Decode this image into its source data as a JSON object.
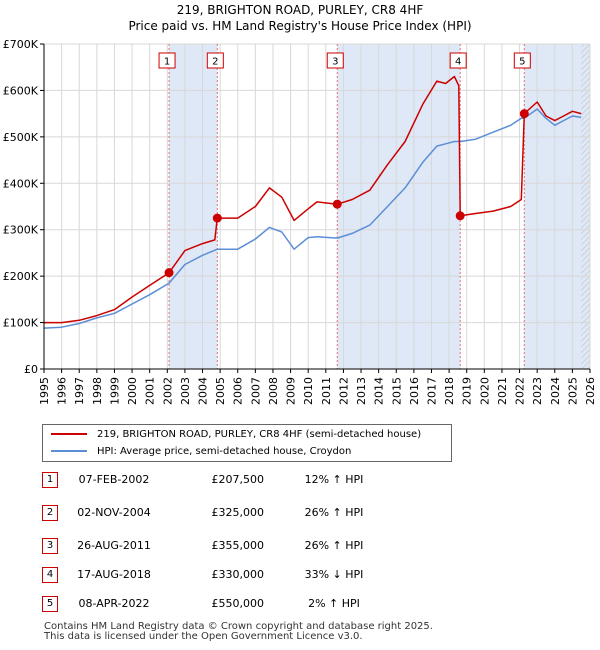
{
  "chart_data": {
    "type": "line",
    "title": "219, BRIGHTON ROAD, PURLEY, CR8 4HF",
    "subtitle": "Price paid vs. HM Land Registry's House Price Index (HPI)",
    "x_range": [
      1995,
      2026
    ],
    "ylim": [
      0,
      700000
    ],
    "y_ticks": [
      {
        "value": 0,
        "label": "£0"
      },
      {
        "value": 100000,
        "label": "£100K"
      },
      {
        "value": 200000,
        "label": "£200K"
      },
      {
        "value": 300000,
        "label": "£300K"
      },
      {
        "value": 400000,
        "label": "£400K"
      },
      {
        "value": 500000,
        "label": "£500K"
      },
      {
        "value": 600000,
        "label": "£600K"
      },
      {
        "value": 700000,
        "label": "£700K"
      }
    ],
    "x_ticks": [
      "1995",
      "1996",
      "1997",
      "1998",
      "1999",
      "2000",
      "2001",
      "2002",
      "2003",
      "2004",
      "2005",
      "2006",
      "2007",
      "2008",
      "2009",
      "2010",
      "2011",
      "2012",
      "2013",
      "2014",
      "2015",
      "2016",
      "2017",
      "2018",
      "2019",
      "2020",
      "2021",
      "2022",
      "2023",
      "2024",
      "2025",
      "2026"
    ],
    "grid": true,
    "series": [
      {
        "name": "219, BRIGHTON ROAD, PURLEY, CR8 4HF (semi-detached house)",
        "color": "#cc0000",
        "points": [
          [
            1995.0,
            100000
          ],
          [
            1996.0,
            100000
          ],
          [
            1997.0,
            105000
          ],
          [
            1998.0,
            115000
          ],
          [
            1999.0,
            128000
          ],
          [
            2000.0,
            155000
          ],
          [
            2001.0,
            180000
          ],
          [
            2002.1,
            207500
          ],
          [
            2003.0,
            255000
          ],
          [
            2004.0,
            270000
          ],
          [
            2004.7,
            278000
          ],
          [
            2004.84,
            325000
          ],
          [
            2006.0,
            325000
          ],
          [
            2007.0,
            350000
          ],
          [
            2007.8,
            390000
          ],
          [
            2008.5,
            370000
          ],
          [
            2009.2,
            320000
          ],
          [
            2010.0,
            345000
          ],
          [
            2010.5,
            360000
          ],
          [
            2011.65,
            355000
          ],
          [
            2012.5,
            365000
          ],
          [
            2013.5,
            385000
          ],
          [
            2014.5,
            440000
          ],
          [
            2015.5,
            490000
          ],
          [
            2016.5,
            570000
          ],
          [
            2017.3,
            620000
          ],
          [
            2017.8,
            615000
          ],
          [
            2018.3,
            630000
          ],
          [
            2018.55,
            610000
          ],
          [
            2018.63,
            330000
          ],
          [
            2019.5,
            335000
          ],
          [
            2020.5,
            340000
          ],
          [
            2021.5,
            350000
          ],
          [
            2022.1,
            365000
          ],
          [
            2022.27,
            550000
          ],
          [
            2023.0,
            575000
          ],
          [
            2023.5,
            545000
          ],
          [
            2024.0,
            535000
          ],
          [
            2024.5,
            545000
          ],
          [
            2025.0,
            555000
          ],
          [
            2025.5,
            550000
          ]
        ]
      },
      {
        "name": "HPI: Average price, semi-detached house, Croydon",
        "color": "#5b8ed6",
        "points": [
          [
            1995.0,
            88000
          ],
          [
            1996.0,
            90000
          ],
          [
            1997.0,
            98000
          ],
          [
            1998.0,
            110000
          ],
          [
            1999.0,
            120000
          ],
          [
            2000.0,
            140000
          ],
          [
            2001.0,
            160000
          ],
          [
            2002.1,
            185000
          ],
          [
            2003.0,
            225000
          ],
          [
            2004.0,
            245000
          ],
          [
            2004.84,
            258000
          ],
          [
            2006.0,
            258000
          ],
          [
            2007.0,
            280000
          ],
          [
            2007.8,
            305000
          ],
          [
            2008.5,
            295000
          ],
          [
            2009.2,
            258000
          ],
          [
            2010.0,
            283000
          ],
          [
            2010.5,
            285000
          ],
          [
            2011.65,
            282000
          ],
          [
            2012.5,
            292000
          ],
          [
            2013.5,
            310000
          ],
          [
            2014.5,
            350000
          ],
          [
            2015.5,
            390000
          ],
          [
            2016.5,
            445000
          ],
          [
            2017.3,
            480000
          ],
          [
            2017.8,
            485000
          ],
          [
            2018.3,
            490000
          ],
          [
            2018.63,
            490000
          ],
          [
            2019.5,
            495000
          ],
          [
            2020.5,
            510000
          ],
          [
            2021.5,
            525000
          ],
          [
            2022.1,
            540000
          ],
          [
            2022.27,
            540000
          ],
          [
            2023.0,
            560000
          ],
          [
            2023.5,
            540000
          ],
          [
            2024.0,
            525000
          ],
          [
            2024.5,
            535000
          ],
          [
            2025.0,
            545000
          ],
          [
            2025.5,
            542000
          ]
        ]
      }
    ],
    "markers": [
      {
        "label": "1",
        "x": 2002.1,
        "y": 207500
      },
      {
        "label": "2",
        "x": 2004.84,
        "y": 325000
      },
      {
        "label": "3",
        "x": 2011.65,
        "y": 355000
      },
      {
        "label": "4",
        "x": 2018.63,
        "y": 330000
      },
      {
        "label": "5",
        "x": 2022.27,
        "y": 550000
      }
    ],
    "shaded_ranges": [
      [
        2002.1,
        2004.84
      ],
      [
        2011.65,
        2018.63
      ],
      [
        2022.27,
        2026
      ]
    ],
    "hatched_range": [
      2025.5,
      2026
    ]
  },
  "legend": {
    "property": "219, BRIGHTON ROAD, PURLEY, CR8 4HF (semi-detached house)",
    "hpi": "HPI: Average price, semi-detached house, Croydon"
  },
  "sales": [
    {
      "num": "1",
      "date": "07-FEB-2002",
      "price": "£207,500",
      "hpi": "12% ↑ HPI"
    },
    {
      "num": "2",
      "date": "02-NOV-2004",
      "price": "£325,000",
      "hpi": "26% ↑ HPI"
    },
    {
      "num": "3",
      "date": "26-AUG-2011",
      "price": "£355,000",
      "hpi": "26% ↑ HPI"
    },
    {
      "num": "4",
      "date": "17-AUG-2018",
      "price": "£330,000",
      "hpi": "33% ↓ HPI"
    },
    {
      "num": "5",
      "date": "08-APR-2022",
      "price": "£550,000",
      "hpi": "2% ↑ HPI"
    }
  ],
  "footer": {
    "line1": "Contains HM Land Registry data © Crown copyright and database right 2025.",
    "line2": "This data is licensed under the Open Government Licence v3.0."
  }
}
